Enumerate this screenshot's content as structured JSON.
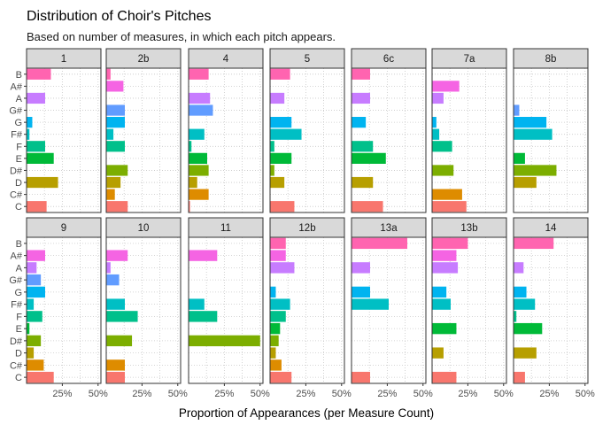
{
  "chart_data": {
    "type": "bar",
    "orientation": "horizontal",
    "title": "Distribution of Choir's Pitches",
    "subtitle": "Based on number of measures, in which each pitch appears.",
    "xlabel": "Proportion of Appearances (per Measure Count)",
    "ylabel": "",
    "xlim": [
      0,
      0.52
    ],
    "xticks": [
      {
        "value": 0.25,
        "label": "25%"
      },
      {
        "value": 0.5,
        "label": "50%"
      }
    ],
    "categories": [
      "C",
      "C#",
      "D",
      "D#",
      "E",
      "F",
      "F#",
      "G",
      "G#",
      "A",
      "A#",
      "B"
    ],
    "colors": {
      "C": "#F8766D",
      "C#": "#DE8C00",
      "D": "#B79F00",
      "D#": "#7CAE00",
      "E": "#00BA38",
      "F": "#00C08B",
      "F#": "#00BFC4",
      "G": "#00B4F0",
      "G#": "#619CFF",
      "A": "#C77CFF",
      "A#": "#F564E3",
      "B": "#FF64B0"
    },
    "grid": "dotted",
    "legend": "none",
    "panels": [
      {
        "name": "1",
        "values": {
          "C": 0.14,
          "C#": 0,
          "D": 0.22,
          "D#": 0,
          "E": 0.19,
          "F": 0.13,
          "F#": 0.02,
          "G": 0.04,
          "G#": 0,
          "A": 0.13,
          "A#": 0,
          "B": 0.17
        }
      },
      {
        "name": "2b",
        "values": {
          "C": 0.15,
          "C#": 0.06,
          "D": 0.1,
          "D#": 0.15,
          "E": 0,
          "F": 0.13,
          "F#": 0.05,
          "G": 0.13,
          "G#": 0.13,
          "A": 0,
          "A#": 0.12,
          "B": 0.03
        }
      },
      {
        "name": "4",
        "values": {
          "C": 0.01,
          "C#": 0.14,
          "D": 0.06,
          "D#": 0.14,
          "E": 0.13,
          "F": 0.02,
          "F#": 0.11,
          "G": 0,
          "G#": 0.17,
          "A": 0.15,
          "A#": 0,
          "B": 0.14
        }
      },
      {
        "name": "5",
        "values": {
          "C": 0.17,
          "C#": 0,
          "D": 0.1,
          "D#": 0.03,
          "E": 0.15,
          "F": 0.03,
          "F#": 0.22,
          "G": 0.15,
          "G#": 0,
          "A": 0.1,
          "A#": 0,
          "B": 0.14
        }
      },
      {
        "name": "6c",
        "values": {
          "C": 0.22,
          "C#": 0,
          "D": 0.15,
          "D#": 0,
          "E": 0.24,
          "F": 0.15,
          "F#": 0,
          "G": 0.1,
          "G#": 0,
          "A": 0.13,
          "A#": 0,
          "B": 0.13
        }
      },
      {
        "name": "7a",
        "values": {
          "C": 0.24,
          "C#": 0.21,
          "D": 0,
          "D#": 0.15,
          "E": 0,
          "F": 0.14,
          "F#": 0.05,
          "G": 0.03,
          "G#": 0,
          "A": 0.08,
          "A#": 0.19,
          "B": 0
        }
      },
      {
        "name": "8b",
        "values": {
          "C": 0,
          "C#": 0,
          "D": 0.16,
          "D#": 0.3,
          "E": 0.08,
          "F": 0,
          "F#": 0.27,
          "G": 0.23,
          "G#": 0.04,
          "A": 0,
          "A#": 0,
          "B": 0
        }
      },
      {
        "name": "9",
        "values": {
          "C": 0.19,
          "C#": 0.12,
          "D": 0.05,
          "D#": 0.1,
          "E": 0.02,
          "F": 0.11,
          "F#": 0.05,
          "G": 0.13,
          "G#": 0.1,
          "A": 0.07,
          "A#": 0.13,
          "B": 0
        }
      },
      {
        "name": "10",
        "values": {
          "C": 0.13,
          "C#": 0.13,
          "D": 0,
          "D#": 0.18,
          "E": 0,
          "F": 0.22,
          "F#": 0.13,
          "G": 0,
          "G#": 0.09,
          "A": 0.03,
          "A#": 0.15,
          "B": 0
        }
      },
      {
        "name": "11",
        "values": {
          "C": 0,
          "C#": 0,
          "D": 0,
          "D#": 0.5,
          "E": 0,
          "F": 0.2,
          "F#": 0.11,
          "G": 0,
          "G#": 0,
          "A": 0,
          "A#": 0.2,
          "B": 0
        }
      },
      {
        "name": "12b",
        "values": {
          "C": 0.15,
          "C#": 0.08,
          "D": 0.04,
          "D#": 0.06,
          "E": 0.07,
          "F": 0.11,
          "F#": 0.14,
          "G": 0.04,
          "G#": 0,
          "A": 0.17,
          "A#": 0.11,
          "B": 0.11
        }
      },
      {
        "name": "13a",
        "values": {
          "C": 0.13,
          "C#": 0,
          "D": 0,
          "D#": 0,
          "E": 0,
          "F": 0,
          "F#": 0.26,
          "G": 0.13,
          "G#": 0,
          "A": 0.13,
          "A#": 0,
          "B": 0.39
        }
      },
      {
        "name": "13b",
        "values": {
          "C": 0.17,
          "C#": 0,
          "D": 0.08,
          "D#": 0,
          "E": 0.17,
          "F": 0,
          "F#": 0.13,
          "G": 0.1,
          "G#": 0,
          "A": 0.18,
          "A#": 0.17,
          "B": 0.25
        }
      },
      {
        "name": "14",
        "values": {
          "C": 0.08,
          "C#": 0,
          "D": 0.16,
          "D#": 0,
          "E": 0.2,
          "F": 0.02,
          "F#": 0.15,
          "G": 0.09,
          "G#": 0,
          "A": 0.07,
          "A#": 0,
          "B": 0.28
        }
      }
    ]
  }
}
